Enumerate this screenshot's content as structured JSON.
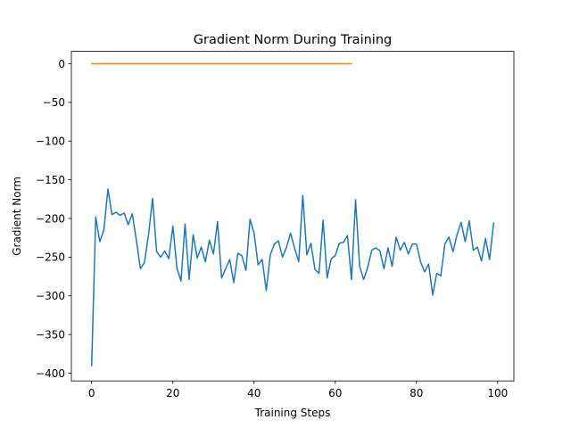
{
  "chart_data": {
    "type": "line",
    "title": "Gradient Norm During Training",
    "xlabel": "Training Steps",
    "ylabel": "Gradient Norm",
    "xlim": [
      -5,
      104
    ],
    "ylim": [
      -410,
      16
    ],
    "xticks": [
      0,
      20,
      40,
      60,
      80,
      100
    ],
    "yticks": [
      0,
      -50,
      -100,
      -150,
      -200,
      -250,
      -300,
      -350,
      -400
    ],
    "grid": false,
    "legend": "none",
    "series": [
      {
        "color": "#1f77b4",
        "x": [
          0,
          1,
          2,
          3,
          4,
          5,
          6,
          7,
          8,
          9,
          10,
          11,
          12,
          13,
          14,
          15,
          16,
          17,
          18,
          19,
          20,
          21,
          22,
          23,
          24,
          25,
          26,
          27,
          28,
          29,
          30,
          31,
          32,
          33,
          34,
          35,
          36,
          37,
          38,
          39,
          40,
          41,
          42,
          43,
          44,
          45,
          46,
          47,
          48,
          49,
          50,
          51,
          52,
          53,
          54,
          55,
          56,
          57,
          58,
          59,
          60,
          61,
          62,
          63,
          64,
          65,
          66,
          67,
          68,
          69,
          70,
          71,
          72,
          73,
          74,
          75,
          76,
          77,
          78,
          79,
          80,
          81,
          82,
          83,
          84,
          85,
          86,
          87,
          88,
          89,
          90,
          91,
          92,
          93,
          94,
          95,
          96,
          97,
          98,
          99
        ],
        "values": [
          -390,
          -198,
          -230,
          -215,
          -162,
          -195,
          -192,
          -196,
          -193,
          -208,
          -194,
          -228,
          -265,
          -257,
          -221,
          -174,
          -243,
          -250,
          -242,
          -252,
          -210,
          -264,
          -281,
          -207,
          -279,
          -221,
          -251,
          -237,
          -256,
          -228,
          -246,
          -204,
          -277,
          -265,
          -253,
          -283,
          -245,
          -248,
          -267,
          -201,
          -219,
          -260,
          -253,
          -293,
          -247,
          -233,
          -229,
          -250,
          -237,
          -219,
          -239,
          -256,
          -170,
          -247,
          -232,
          -266,
          -271,
          -202,
          -277,
          -252,
          -248,
          -232,
          -231,
          -222,
          -279,
          -176,
          -262,
          -279,
          -263,
          -241,
          -238,
          -242,
          -265,
          -238,
          -262,
          -224,
          -241,
          -231,
          -246,
          -233,
          -233,
          -256,
          -269,
          -259,
          -299,
          -271,
          -274,
          -233,
          -224,
          -243,
          -221,
          -205,
          -230,
          -203,
          -241,
          -237,
          -255,
          -226,
          -253,
          -206
        ]
      },
      {
        "color": "#ff7f0e",
        "x": [
          0,
          64
        ],
        "values": [
          0,
          0
        ]
      }
    ]
  }
}
